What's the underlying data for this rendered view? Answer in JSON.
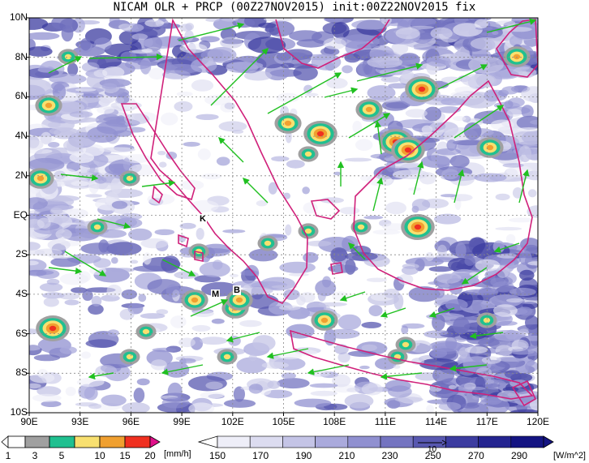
{
  "title": "NICAM OLR + PRCP (00Z27NOV2015) init:00Z22NOV2015 fix",
  "lat_labels": [
    "10N",
    "8N",
    "6N",
    "4N",
    "2N",
    "EQ",
    "2S",
    "4S",
    "6S",
    "8S",
    "10S"
  ],
  "lon_labels": [
    "90E",
    "93E",
    "96E",
    "99E",
    "102E",
    "105E",
    "108E",
    "111E",
    "114E",
    "117E",
    "120E"
  ],
  "place_labels": [
    "K",
    "M",
    "B"
  ],
  "precip_colorbar": {
    "ticks": [
      "1",
      "3",
      "5",
      "10",
      "15",
      "20"
    ],
    "unit": "[mm/h]",
    "colors": [
      "#ffffff",
      "#a0a0a0",
      "#20c090",
      "#f8e070",
      "#f0a030",
      "#f03020",
      "#e0108a"
    ]
  },
  "olr_colorbar": {
    "ticks": [
      "150",
      "170",
      "190",
      "210",
      "230",
      "250",
      "270",
      "290"
    ],
    "unit": "[W/m^2]",
    "colors": [
      "#ffffff",
      "#eeeef8",
      "#dcdcf0",
      "#c4c4e6",
      "#aaaadc",
      "#9090d0",
      "#7474c0",
      "#5858b0",
      "#3c3ca0",
      "#242490",
      "#141482"
    ]
  },
  "vector_reference_label": "10",
  "colors": {
    "coastline": "#d0207a",
    "wind_vector": "#20c020",
    "grid": "#888888"
  }
}
